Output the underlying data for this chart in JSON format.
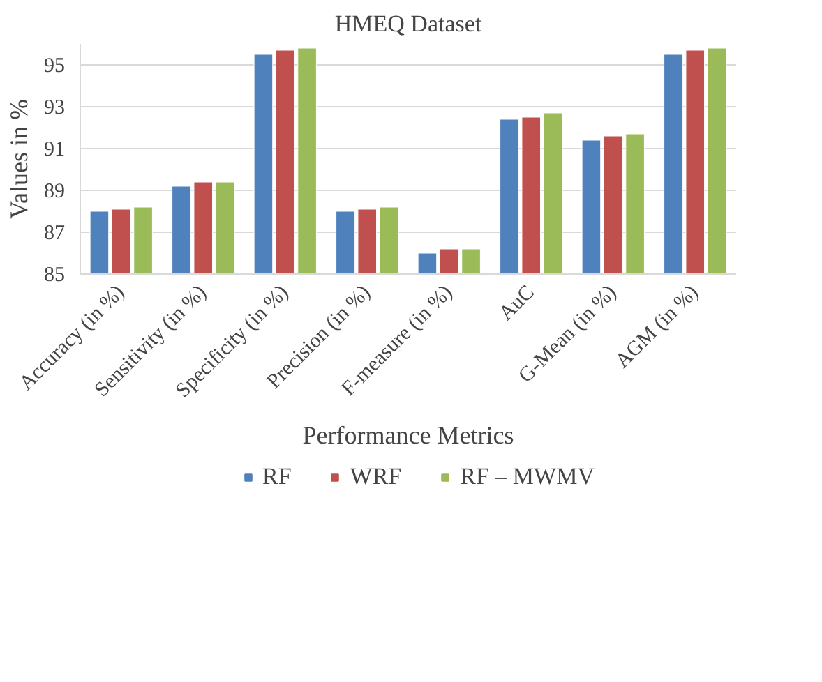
{
  "chart_data": {
    "type": "bar",
    "title": "HMEQ Dataset",
    "xlabel": "Performance Metrics",
    "ylabel": "Values in %",
    "categories": [
      "Accuracy (in %)",
      "Sensitivity (in %)",
      "Specificity (in %)",
      "Precision (in %)",
      "F-measure (in %)",
      "AuC",
      "G-Mean (in %)",
      "AGM (in %)"
    ],
    "series": [
      {
        "name": "RF",
        "color": "#4f81bd",
        "values": [
          88.0,
          89.2,
          95.5,
          88.0,
          86.0,
          92.4,
          91.4,
          95.5
        ]
      },
      {
        "name": "WRF",
        "color": "#c0504d",
        "values": [
          88.1,
          89.4,
          95.7,
          88.1,
          86.2,
          92.5,
          91.6,
          95.7
        ]
      },
      {
        "name": "RF – MWMV",
        "color": "#9bbb59",
        "values": [
          88.2,
          89.4,
          95.8,
          88.2,
          86.2,
          92.7,
          91.7,
          95.8
        ]
      }
    ],
    "ylim": [
      85,
      96
    ],
    "yticks": [
      85,
      87,
      89,
      91,
      93,
      95
    ],
    "grid": "y",
    "legend": "bottom"
  }
}
